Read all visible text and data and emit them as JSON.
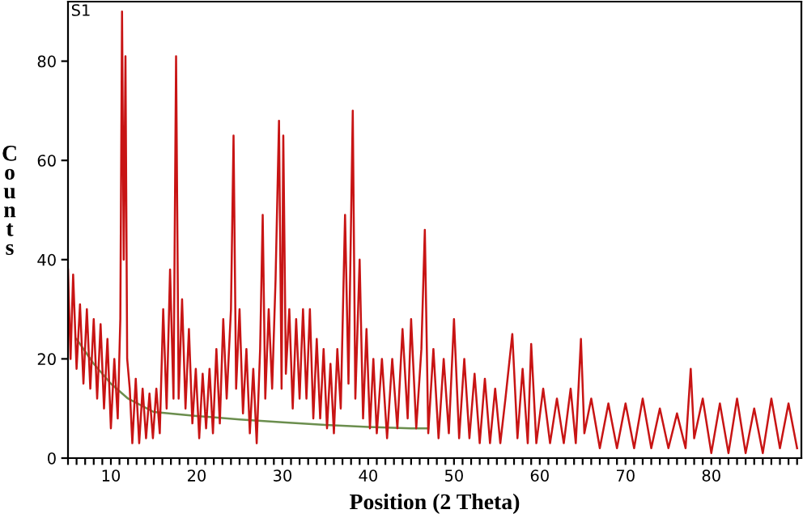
{
  "chart_data": {
    "type": "line",
    "xlabel": "Position (2 Theta)",
    "ylabel": "Counts",
    "annotations": [
      "S1"
    ],
    "xlim": [
      5,
      90.5
    ],
    "ylim": [
      0,
      92
    ],
    "xticks": [
      {
        "value": 5,
        "label": null
      },
      {
        "value": 6,
        "label": null
      },
      {
        "value": 7,
        "label": null
      },
      {
        "value": 8,
        "label": null
      },
      {
        "value": 9,
        "label": null
      },
      10,
      {
        "value": 11,
        "label": null
      },
      {
        "value": 12,
        "label": null
      },
      {
        "value": 13,
        "label": null
      },
      {
        "value": 14,
        "label": null
      },
      {
        "value": 15,
        "label": null
      },
      {
        "value": 16,
        "label": null
      },
      {
        "value": 17,
        "label": null
      },
      {
        "value": 18,
        "label": null
      },
      {
        "value": 19,
        "label": null
      },
      20,
      {
        "value": 21,
        "label": null
      },
      {
        "value": 22,
        "label": null
      },
      {
        "value": 23,
        "label": null
      },
      {
        "value": 24,
        "label": null
      },
      {
        "value": 25,
        "label": null
      },
      {
        "value": 26,
        "label": null
      },
      {
        "value": 27,
        "label": null
      },
      {
        "value": 28,
        "label": null
      },
      {
        "value": 29,
        "label": null
      },
      30,
      {
        "value": 31,
        "label": null
      },
      {
        "value": 32,
        "label": null
      },
      {
        "value": 33,
        "label": null
      },
      {
        "value": 34,
        "label": null
      },
      {
        "value": 35,
        "label": null
      },
      {
        "value": 36,
        "label": null
      },
      {
        "value": 37,
        "label": null
      },
      {
        "value": 38,
        "label": null
      },
      {
        "value": 39,
        "label": null
      },
      40,
      {
        "value": 41,
        "label": null
      },
      {
        "value": 42,
        "label": null
      },
      {
        "value": 43,
        "label": null
      },
      {
        "value": 44,
        "label": null
      },
      {
        "value": 45,
        "label": null
      },
      {
        "value": 46,
        "label": null
      },
      {
        "value": 47,
        "label": null
      },
      {
        "value": 48,
        "label": null
      },
      {
        "value": 49,
        "label": null
      },
      50,
      {
        "value": 51,
        "label": null
      },
      {
        "value": 52,
        "label": null
      },
      {
        "value": 53,
        "label": null
      },
      {
        "value": 54,
        "label": null
      },
      {
        "value": 55,
        "label": null
      },
      {
        "value": 56,
        "label": null
      },
      {
        "value": 57,
        "label": null
      },
      {
        "value": 58,
        "label": null
      },
      {
        "value": 59,
        "label": null
      },
      60,
      {
        "value": 61,
        "label": null
      },
      {
        "value": 62,
        "label": null
      },
      {
        "value": 63,
        "label": null
      },
      {
        "value": 64,
        "label": null
      },
      {
        "value": 65,
        "label": null
      },
      {
        "value": 66,
        "label": null
      },
      {
        "value": 67,
        "label": null
      },
      {
        "value": 68,
        "label": null
      },
      {
        "value": 69,
        "label": null
      },
      70,
      {
        "value": 71,
        "label": null
      },
      {
        "value": 72,
        "label": null
      },
      {
        "value": 73,
        "label": null
      },
      {
        "value": 74,
        "label": null
      },
      {
        "value": 75,
        "label": null
      },
      {
        "value": 76,
        "label": null
      },
      {
        "value": 77,
        "label": null
      },
      {
        "value": 78,
        "label": null
      },
      {
        "value": 79,
        "label": null
      },
      80,
      {
        "value": 81,
        "label": null
      },
      {
        "value": 82,
        "label": null
      },
      {
        "value": 83,
        "label": null
      },
      {
        "value": 84,
        "label": null
      },
      {
        "value": 85,
        "label": null
      },
      {
        "value": 86,
        "label": null
      },
      {
        "value": 87,
        "label": null
      },
      {
        "value": 88,
        "label": null
      },
      {
        "value": 89,
        "label": null
      },
      {
        "value": 90,
        "label": null
      }
    ],
    "yticks": [
      0,
      20,
      40,
      60,
      80
    ],
    "grid": false,
    "legend": false,
    "marker": "none",
    "line_style": "solid",
    "series": [
      {
        "color": "#6b8e4e",
        "x": [
          6,
          8,
          10,
          12,
          15,
          20,
          25,
          30,
          35,
          40,
          45,
          47
        ],
        "values": [
          24,
          19,
          15,
          12,
          9.3,
          8.5,
          7.8,
          7.2,
          6.7,
          6.3,
          6,
          6
        ]
      },
      {
        "color": "#c81414",
        "x": [
          5,
          5.3,
          5.6,
          6,
          6.4,
          6.8,
          7.2,
          7.6,
          8,
          8.4,
          8.8,
          9.2,
          9.6,
          10,
          10.4,
          10.8,
          11.1,
          11.3,
          11.5,
          11.7,
          11.9,
          12.2,
          12.5,
          12.9,
          13.3,
          13.7,
          14.1,
          14.5,
          14.9,
          15.3,
          15.7,
          16.1,
          16.5,
          16.9,
          17.3,
          17.6,
          17.9,
          18.3,
          18.7,
          19.1,
          19.5,
          19.9,
          20.3,
          20.7,
          21.1,
          21.5,
          21.9,
          22.3,
          22.7,
          23.1,
          23.5,
          24,
          24.3,
          24.6,
          25,
          25.4,
          25.8,
          26.2,
          26.6,
          27,
          27.4,
          27.7,
          28,
          28.4,
          28.8,
          29.2,
          29.6,
          29.9,
          30.1,
          30.4,
          30.8,
          31.2,
          31.6,
          32,
          32.4,
          32.8,
          33.2,
          33.6,
          34,
          34.4,
          34.8,
          35.2,
          35.6,
          36,
          36.4,
          36.8,
          37.3,
          37.7,
          38.2,
          38.5,
          39,
          39.4,
          39.8,
          40.2,
          40.6,
          41,
          41.6,
          42.2,
          42.8,
          43.4,
          44,
          44.6,
          45,
          45.6,
          46.2,
          46.6,
          47,
          47.6,
          48.2,
          48.8,
          49.4,
          50,
          50.6,
          51.2,
          51.8,
          52.4,
          53,
          53.6,
          54.2,
          54.8,
          55.4,
          56,
          56.8,
          57.4,
          58,
          58.6,
          59,
          59.6,
          60.4,
          61.2,
          62,
          62.8,
          63.6,
          64.2,
          64.8,
          65.2,
          66,
          67,
          68,
          69,
          70,
          71,
          72,
          73,
          74,
          75,
          76,
          77,
          77.6,
          78,
          79,
          80,
          81,
          82,
          83,
          84,
          85,
          86,
          87,
          88,
          89,
          90
        ],
        "values": [
          38,
          20,
          37,
          18,
          31,
          15,
          30,
          14,
          28,
          12,
          27,
          10,
          24,
          6,
          20,
          8,
          28,
          90,
          40,
          81,
          20,
          14,
          3,
          16,
          3,
          14,
          4,
          13,
          4,
          14,
          5,
          30,
          10,
          38,
          12,
          81,
          12,
          32,
          10,
          26,
          7,
          18,
          4,
          17,
          6,
          18,
          5,
          22,
          7,
          28,
          12,
          30,
          65,
          14,
          30,
          9,
          22,
          5,
          18,
          3,
          22,
          49,
          12,
          30,
          14,
          36,
          68,
          14,
          65,
          17,
          30,
          10,
          28,
          12,
          30,
          12,
          30,
          8,
          24,
          8,
          22,
          6,
          19,
          5,
          22,
          10,
          49,
          15,
          70,
          12,
          40,
          8,
          26,
          6,
          20,
          5,
          20,
          4,
          20,
          6,
          26,
          8,
          28,
          6,
          22,
          46,
          5,
          22,
          4,
          20,
          5,
          28,
          4,
          20,
          4,
          17,
          3,
          16,
          3,
          14,
          3,
          12,
          25,
          4,
          18,
          3,
          23,
          3,
          14,
          3,
          12,
          3,
          14,
          3,
          24,
          5,
          12,
          2,
          11,
          2,
          11,
          2,
          12,
          2,
          10,
          2,
          9,
          2,
          18,
          4,
          12,
          1,
          11,
          1,
          12,
          1,
          10,
          1,
          12,
          2,
          11,
          2
        ]
      }
    ]
  }
}
